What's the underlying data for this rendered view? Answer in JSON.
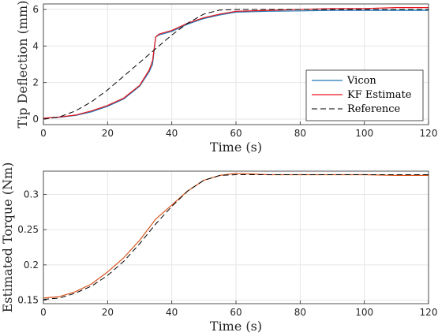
{
  "chart_data": [
    {
      "type": "line",
      "xlabel": "Time (s)",
      "ylabel": "Tip Deflection (mm)",
      "xlim": [
        0,
        120
      ],
      "ylim": [
        -0.3,
        6.3
      ],
      "xticks": [
        0,
        20,
        40,
        60,
        80,
        100,
        120
      ],
      "yticks": [
        0,
        2,
        4,
        6
      ],
      "grid": true,
      "legend_position": "lower-right",
      "series": [
        {
          "name": "Vicon",
          "color": "#1f77b4",
          "style": "solid",
          "x": [
            0,
            5,
            10,
            15,
            20,
            25,
            30,
            33,
            34,
            35,
            36,
            40,
            45,
            50,
            55,
            60,
            70,
            80,
            90,
            100,
            110,
            120
          ],
          "y": [
            0.05,
            0.1,
            0.2,
            0.4,
            0.7,
            1.1,
            1.8,
            2.6,
            3.0,
            4.5,
            4.6,
            4.8,
            5.2,
            5.5,
            5.7,
            5.85,
            5.9,
            5.92,
            5.95,
            5.95,
            5.95,
            5.95
          ]
        },
        {
          "name": "KF Estimate",
          "color": "#e8141c",
          "style": "solid",
          "x": [
            0,
            5,
            10,
            15,
            20,
            25,
            30,
            33,
            34,
            35,
            36,
            40,
            45,
            50,
            55,
            60,
            70,
            80,
            90,
            100,
            110,
            120
          ],
          "y": [
            0.05,
            0.12,
            0.22,
            0.45,
            0.75,
            1.15,
            1.85,
            2.7,
            3.2,
            4.5,
            4.65,
            4.85,
            5.25,
            5.55,
            5.75,
            5.9,
            5.95,
            6.0,
            6.05,
            6.05,
            6.1,
            6.1
          ]
        },
        {
          "name": "Reference",
          "color": "#000000",
          "style": "dashed",
          "x": [
            0,
            5,
            10,
            15,
            20,
            25,
            30,
            35,
            40,
            45,
            50,
            55,
            60,
            70,
            80,
            90,
            100,
            110,
            120
          ],
          "y": [
            0,
            0.12,
            0.45,
            0.95,
            1.6,
            2.35,
            3.1,
            3.85,
            4.6,
            5.25,
            5.75,
            5.97,
            6.0,
            6.0,
            6.0,
            6.0,
            6.0,
            6.0,
            6.0
          ]
        }
      ]
    },
    {
      "type": "line",
      "xlabel": "Time (s)",
      "ylabel": "Estimated Torque (Nm)",
      "xlim": [
        0,
        120
      ],
      "ylim": [
        0.145,
        0.333
      ],
      "xticks": [
        0,
        20,
        40,
        60,
        80,
        100,
        120
      ],
      "yticks": [
        0.15,
        0.2,
        0.25,
        0.3
      ],
      "grid": true,
      "series": [
        {
          "color": "#d95319",
          "style": "solid",
          "x": [
            0,
            5,
            10,
            15,
            20,
            25,
            30,
            35,
            40,
            45,
            50,
            55,
            60,
            70,
            80,
            90,
            100,
            110,
            120
          ],
          "y": [
            0.153,
            0.155,
            0.162,
            0.173,
            0.19,
            0.21,
            0.235,
            0.265,
            0.285,
            0.305,
            0.32,
            0.327,
            0.33,
            0.328,
            0.328,
            0.328,
            0.328,
            0.327,
            0.327
          ]
        },
        {
          "color": "#000000",
          "style": "dashed",
          "x": [
            0,
            5,
            10,
            15,
            20,
            25,
            30,
            35,
            40,
            45,
            50,
            55,
            60,
            70,
            80,
            90,
            100,
            110,
            120
          ],
          "y": [
            0.151,
            0.153,
            0.16,
            0.17,
            0.185,
            0.205,
            0.23,
            0.258,
            0.283,
            0.305,
            0.32,
            0.327,
            0.328,
            0.328,
            0.328,
            0.328,
            0.328,
            0.328,
            0.328
          ]
        }
      ]
    }
  ]
}
